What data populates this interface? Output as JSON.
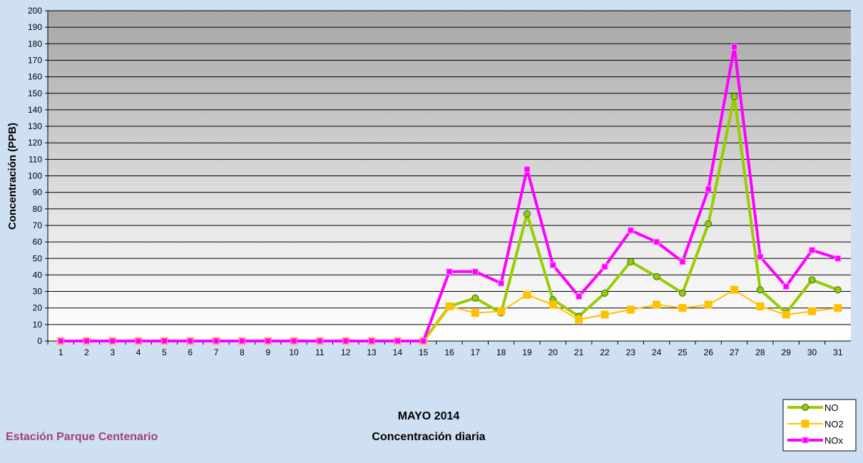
{
  "chart_data": {
    "type": "line",
    "title": "MAYO 2014",
    "subtitle": "Concentración diaria",
    "station": "Estación Parque Centenario",
    "y_label": "Concentración  (PPB)",
    "categories": [
      "1",
      "2",
      "3",
      "4",
      "5",
      "6",
      "7",
      "8",
      "9",
      "10",
      "11",
      "12",
      "13",
      "14",
      "15",
      "16",
      "17",
      "18",
      "19",
      "20",
      "21",
      "22",
      "23",
      "24",
      "25",
      "26",
      "27",
      "28",
      "29",
      "30",
      "31"
    ],
    "series": [
      {
        "name": "NO",
        "color": "#99cc00",
        "marker": "circle",
        "values": [
          0,
          0,
          0,
          0,
          0,
          0,
          0,
          0,
          0,
          0,
          0,
          0,
          0,
          0,
          0,
          21,
          26,
          17,
          77,
          25,
          15,
          29,
          48,
          39,
          29,
          71,
          148,
          31,
          17,
          37,
          31
        ]
      },
      {
        "name": "NO2",
        "color": "#ffc000",
        "marker": "square",
        "values": [
          0,
          0,
          0,
          0,
          0,
          0,
          0,
          0,
          0,
          0,
          0,
          0,
          0,
          0,
          0,
          21,
          17,
          18,
          28,
          22,
          13,
          16,
          19,
          22,
          20,
          22,
          31,
          21,
          16,
          18,
          20
        ]
      },
      {
        "name": "NOx",
        "color": "#ff00ff",
        "marker": "square",
        "values": [
          0,
          0,
          0,
          0,
          0,
          0,
          0,
          0,
          0,
          0,
          0,
          0,
          0,
          0,
          0,
          42,
          42,
          35,
          104,
          46,
          27,
          45,
          67,
          60,
          48,
          92,
          178,
          51,
          33,
          55,
          50
        ]
      }
    ],
    "ylim": [
      0,
      200
    ],
    "yticks": [
      0,
      10,
      20,
      30,
      40,
      50,
      60,
      70,
      80,
      90,
      100,
      110,
      120,
      130,
      140,
      150,
      160,
      170,
      180,
      190,
      200
    ],
    "grid": true
  }
}
